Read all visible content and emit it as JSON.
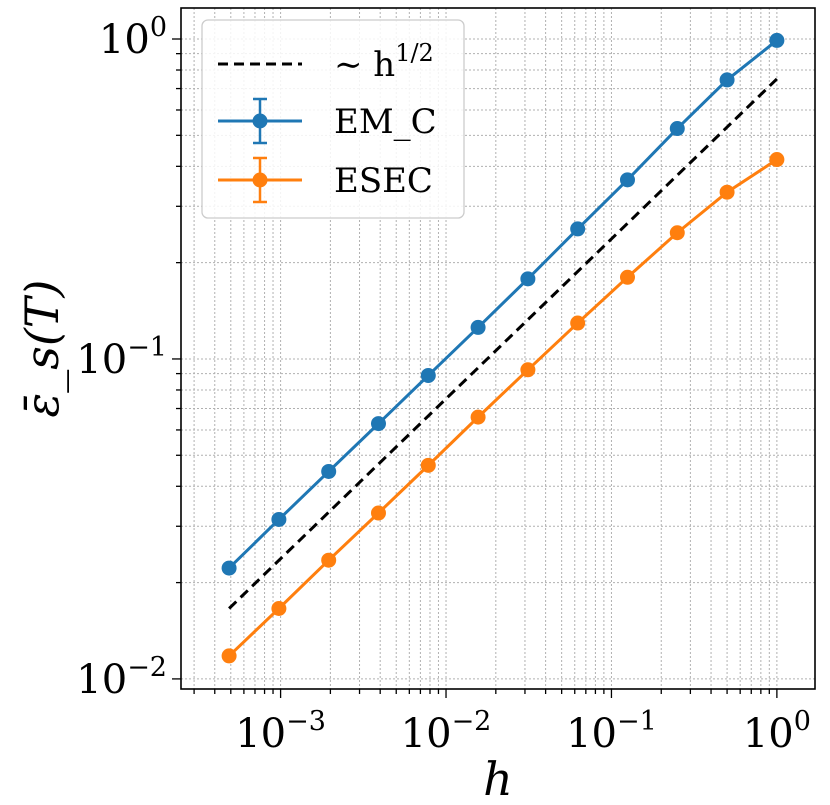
{
  "chart_data": {
    "type": "line",
    "title": "",
    "xlabel": "h",
    "ylabel": "ε̄_s(T)",
    "xscale": "log",
    "yscale": "log",
    "xlim": [
      0.00025,
      1.7
    ],
    "ylim": [
      0.0093,
      1.25
    ],
    "x_ticks": [
      {
        "value": 0.001,
        "base": "10",
        "exp": "−3"
      },
      {
        "value": 0.01,
        "base": "10",
        "exp": "−2"
      },
      {
        "value": 0.1,
        "base": "10",
        "exp": "−1"
      },
      {
        "value": 1,
        "base": "10",
        "exp": "0"
      }
    ],
    "y_ticks": [
      {
        "value": 0.01,
        "base": "10",
        "exp": "−2"
      },
      {
        "value": 0.1,
        "base": "10",
        "exp": "−1"
      },
      {
        "value": 1,
        "base": "10",
        "exp": "0"
      }
    ],
    "grid": true,
    "legend_position": "top-left",
    "series": [
      {
        "name": "∼ h^1/2",
        "legend_prefix": "∼ h",
        "legend_sup": "1/2",
        "color": "#000000",
        "style": "dashed",
        "markers": false,
        "x": [
          0.00048828125,
          1
        ],
        "y": [
          0.0166,
          0.75
        ]
      },
      {
        "name": "EM_C",
        "color": "#1f77b4",
        "style": "solid",
        "markers": true,
        "errorbars": true,
        "x": [
          0.00048828125,
          0.0009765625,
          0.001953125,
          0.00390625,
          0.0078125,
          0.015625,
          0.03125,
          0.0625,
          0.125,
          0.25,
          0.5,
          1
        ],
        "y": [
          0.0222,
          0.0315,
          0.0445,
          0.0628,
          0.0888,
          0.1255,
          0.178,
          0.255,
          0.363,
          0.525,
          0.745,
          0.99
        ]
      },
      {
        "name": "ESEC",
        "color": "#ff7f0e",
        "style": "solid",
        "markers": true,
        "errorbars": true,
        "x": [
          0.00048828125,
          0.0009765625,
          0.001953125,
          0.00390625,
          0.0078125,
          0.015625,
          0.03125,
          0.0625,
          0.125,
          0.25,
          0.5,
          1
        ],
        "y": [
          0.0118,
          0.0166,
          0.0235,
          0.033,
          0.0465,
          0.0658,
          0.0925,
          0.1295,
          0.18,
          0.248,
          0.332,
          0.42
        ]
      }
    ]
  }
}
